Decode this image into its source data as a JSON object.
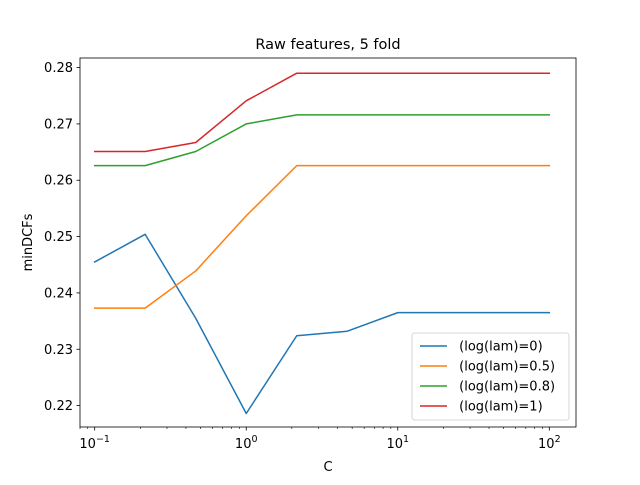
{
  "chart_data": {
    "type": "line",
    "title": "Raw features, 5 fold",
    "xlabel": "C",
    "ylabel": "minDCFs",
    "xscale": "log",
    "xlim": [
      0.08,
      150
    ],
    "ylim": [
      0.2162,
      0.2817
    ],
    "x": [
      0.1,
      0.2154,
      0.4642,
      1,
      2.154,
      4.642,
      10,
      21.54,
      46.42,
      100
    ],
    "x_ticks": [
      {
        "value": 0.1,
        "base": "10",
        "exp": "−1"
      },
      {
        "value": 1,
        "base": "10",
        "exp": "0"
      },
      {
        "value": 10,
        "base": "10",
        "exp": "1"
      },
      {
        "value": 100,
        "base": "10",
        "exp": "2"
      }
    ],
    "y_ticks": [
      {
        "value": 0.22,
        "label": "0.22"
      },
      {
        "value": 0.23,
        "label": "0.23"
      },
      {
        "value": 0.24,
        "label": "0.24"
      },
      {
        "value": 0.25,
        "label": "0.25"
      },
      {
        "value": 0.26,
        "label": "0.26"
      },
      {
        "value": 0.27,
        "label": "0.27"
      },
      {
        "value": 0.28,
        "label": "0.28"
      }
    ],
    "series": [
      {
        "name": " (log(lam)=0)",
        "color": "#1f77b4",
        "values": [
          0.2455,
          0.2504,
          0.2355,
          0.2186,
          0.2324,
          0.2332,
          0.2365,
          0.2365,
          0.2365,
          0.2365
        ]
      },
      {
        "name": " (log(lam)=0.5)",
        "color": "#ff7f0e",
        "values": [
          0.2373,
          0.2373,
          0.2439,
          0.2537,
          0.2626,
          0.2626,
          0.2626,
          0.2626,
          0.2626,
          0.2626
        ]
      },
      {
        "name": " (log(lam)=0.8)",
        "color": "#2ca02c",
        "values": [
          0.2626,
          0.2626,
          0.2651,
          0.27,
          0.2716,
          0.2716,
          0.2716,
          0.2716,
          0.2716,
          0.2716
        ]
      },
      {
        "name": " (log(lam)=1)",
        "color": "#d62728",
        "values": [
          0.2651,
          0.2651,
          0.2667,
          0.2741,
          0.279,
          0.279,
          0.279,
          0.279,
          0.279,
          0.279
        ]
      }
    ],
    "grid": false,
    "legend_position": "lower-right"
  }
}
